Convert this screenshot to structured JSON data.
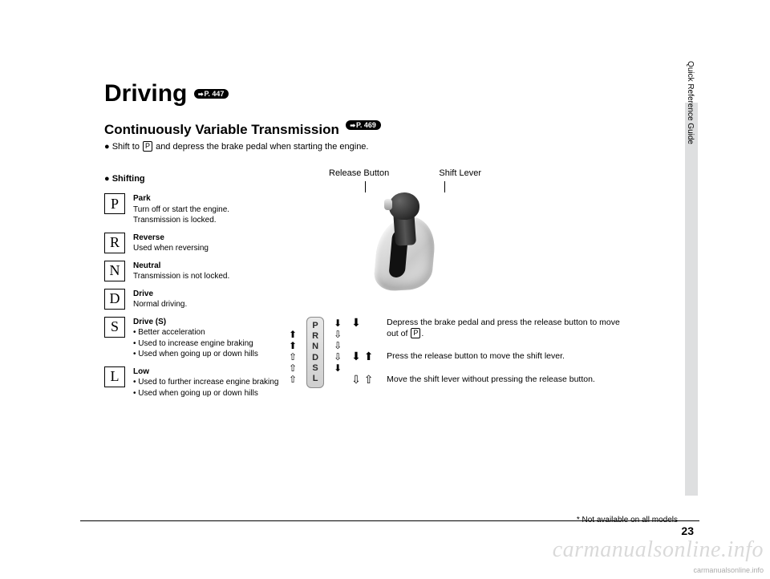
{
  "header": {
    "title": "Driving",
    "title_pill": "P. 447",
    "subtitle": "Continuously Variable Transmission",
    "subtitle_pill": "P. 469",
    "intro_prefix": "Shift to ",
    "intro_box": "P",
    "intro_suffix": " and depress the brake pedal when starting the engine.",
    "shifting_label": "Shifting"
  },
  "gears": [
    {
      "letter": "P",
      "title": "Park",
      "lines": [
        "Turn off or start the engine.",
        "Transmission is locked."
      ]
    },
    {
      "letter": "R",
      "title": "Reverse",
      "lines": [
        "Used when reversing"
      ]
    },
    {
      "letter": "N",
      "title": "Neutral",
      "lines": [
        "Transmission is not locked."
      ]
    },
    {
      "letter": "D",
      "title": "Drive",
      "lines": [
        "Normal driving."
      ]
    },
    {
      "letter": "S",
      "title": "Drive (S)",
      "bullets": [
        "Better acceleration",
        "Used to increase engine braking",
        "Used when going up or down hills"
      ]
    },
    {
      "letter": "L",
      "title": "Low",
      "bullets": [
        "Used to further increase engine braking",
        "Used when going up or down hills"
      ]
    }
  ],
  "shifter": {
    "release_label": "Release Button",
    "lever_label": "Shift Lever"
  },
  "indicator_letters": [
    "P",
    "R",
    "N",
    "D",
    "S",
    "L"
  ],
  "left_arrows": [
    "",
    "⬆",
    "⬆",
    "⇧",
    "⇧",
    "⇧"
  ],
  "right_arrows": [
    "⬇",
    "⇩",
    "⇩",
    "⇩",
    "⬇",
    ""
  ],
  "instructions": [
    {
      "icons": "⬇",
      "text_pre": "Depress the brake pedal and press the release button to move out of ",
      "box": "P",
      "text_post": "."
    },
    {
      "icons": "⬇ ⬆",
      "text": "Press the release button to move the shift lever."
    },
    {
      "icons": "⇩ ⇧",
      "text": "Move the shift lever without pressing the release button."
    }
  ],
  "sidebar_label": "Quick Reference Guide",
  "footer": {
    "note": "* Not available on all models",
    "page": "23"
  },
  "watermark": "carmanualsonline.info",
  "watermark_small": "carmanualsonline.info",
  "colors": {
    "text": "#000000",
    "sidebar_bg": "#dedfe0",
    "page_bg": "#ffffff"
  }
}
